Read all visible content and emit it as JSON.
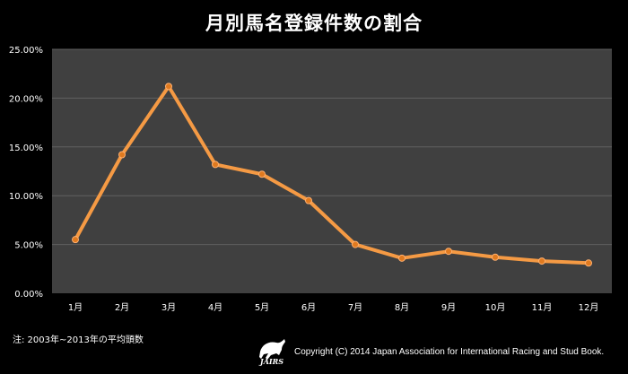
{
  "colors": {
    "background": "#000000",
    "plot_area": "#404040",
    "gridline": "#606060",
    "line": "#f59a44",
    "marker": "#e07a1f",
    "text": "#ffffff"
  },
  "footer": {
    "note": "注: 2003年~2013年の平均頭数",
    "copyright": "Copyright (C) 2014 Japan Association for International Racing and Stud Book.",
    "logo_text": "JAIRS"
  },
  "chart_data": {
    "type": "line",
    "title": "月別馬名登録件数の割合",
    "xlabel": "",
    "ylabel": "",
    "categories": [
      "1月",
      "2月",
      "3月",
      "4月",
      "5月",
      "6月",
      "7月",
      "8月",
      "9月",
      "10月",
      "11月",
      "12月"
    ],
    "series": [
      {
        "values": [
          5.5,
          14.2,
          21.2,
          13.2,
          12.2,
          9.5,
          5.0,
          3.6,
          4.3,
          3.7,
          3.3,
          3.1
        ]
      }
    ],
    "yticks": [
      "0.00%",
      "5.00%",
      "10.00%",
      "15.00%",
      "20.00%",
      "25.00%"
    ],
    "ylim": [
      0,
      25
    ],
    "grid": true,
    "legend": "none"
  }
}
